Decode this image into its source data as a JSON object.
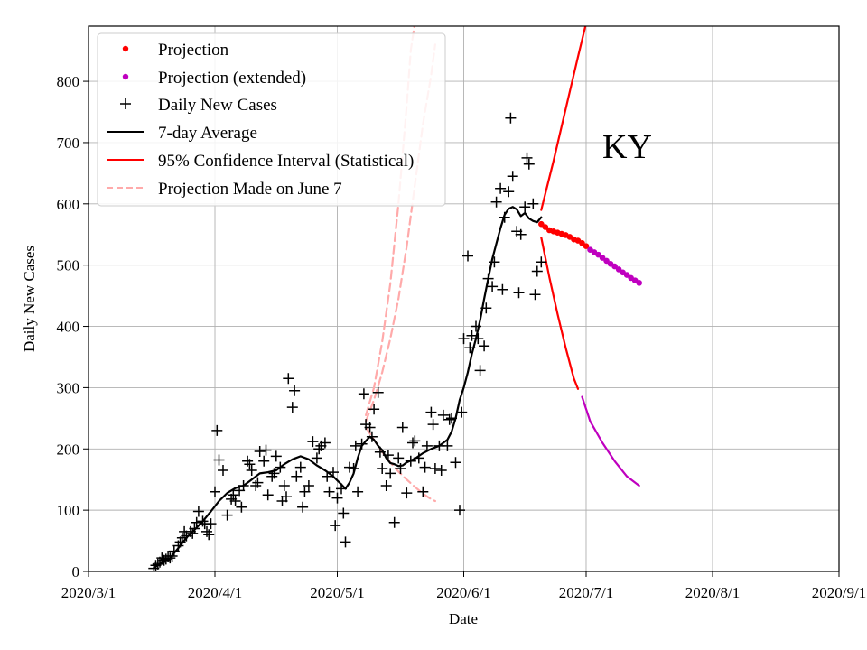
{
  "chart_data": {
    "type": "scatter",
    "title": "",
    "annotation": "KY",
    "xlabel": "Date",
    "ylabel": "Daily New Cases",
    "xlim": [
      0,
      184
    ],
    "ylim": [
      0,
      890
    ],
    "grid": true,
    "legend_position": "top-left",
    "xticks": [
      {
        "label": "2020/3/1",
        "day": 0
      },
      {
        "label": "2020/4/1",
        "day": 31
      },
      {
        "label": "2020/5/1",
        "day": 61
      },
      {
        "label": "2020/6/1",
        "day": 92
      },
      {
        "label": "2020/7/1",
        "day": 122
      },
      {
        "label": "2020/8/1",
        "day": 153
      },
      {
        "label": "2020/9/1",
        "day": 184
      }
    ],
    "yticks": [
      0,
      100,
      200,
      300,
      400,
      500,
      600,
      700,
      800
    ],
    "legend": [
      {
        "key": "projection",
        "label": "Projection",
        "color": "#ff0000",
        "kind": "dot"
      },
      {
        "key": "projection_ext",
        "label": "Projection (extended)",
        "color": "#bf00bf",
        "kind": "dot"
      },
      {
        "key": "daily",
        "label": "Daily New Cases",
        "color": "#000000",
        "kind": "plus"
      },
      {
        "key": "avg",
        "label": "7-day Average",
        "color": "#000000",
        "kind": "line"
      },
      {
        "key": "ci",
        "label": "95% Confidence Interval (Statistical)",
        "color": "#ff0000",
        "kind": "line"
      },
      {
        "key": "june7",
        "label": "Projection Made on June 7",
        "color": "#ffaaaa",
        "kind": "dashed"
      }
    ],
    "series": {
      "daily_new_cases": [
        [
          16,
          5
        ],
        [
          16.5,
          10
        ],
        [
          17,
          12
        ],
        [
          17.5,
          15
        ],
        [
          18,
          22
        ],
        [
          18.5,
          18
        ],
        [
          19,
          20
        ],
        [
          19.5,
          25
        ],
        [
          20,
          22
        ],
        [
          20.5,
          25
        ],
        [
          21,
          33
        ],
        [
          22,
          42
        ],
        [
          22.5,
          48
        ],
        [
          23,
          55
        ],
        [
          23.5,
          65
        ],
        [
          24,
          58
        ],
        [
          25,
          65
        ],
        [
          25.5,
          62
        ],
        [
          26,
          70
        ],
        [
          26.5,
          80
        ],
        [
          27,
          98
        ],
        [
          28,
          82
        ],
        [
          28.5,
          78
        ],
        [
          29,
          65
        ],
        [
          29.5,
          60
        ],
        [
          30,
          78
        ],
        [
          31,
          130
        ],
        [
          31.5,
          230
        ],
        [
          32,
          182
        ],
        [
          33,
          165
        ],
        [
          34,
          92
        ],
        [
          35,
          118
        ],
        [
          35.5,
          125
        ],
        [
          36,
          115
        ],
        [
          37,
          132
        ],
        [
          37.5,
          105
        ],
        [
          38,
          140
        ],
        [
          39,
          180
        ],
        [
          39.5,
          175
        ],
        [
          40,
          165
        ],
        [
          41,
          140
        ],
        [
          41.5,
          145
        ],
        [
          42,
          196
        ],
        [
          43,
          180
        ],
        [
          43.5,
          198
        ],
        [
          44,
          125
        ],
        [
          45,
          155
        ],
        [
          45.5,
          160
        ],
        [
          46,
          188
        ],
        [
          47,
          170
        ],
        [
          47.5,
          115
        ],
        [
          48,
          140
        ],
        [
          48.5,
          122
        ],
        [
          49,
          315
        ],
        [
          50,
          268
        ],
        [
          50.5,
          295
        ],
        [
          51,
          155
        ],
        [
          52,
          170
        ],
        [
          52.5,
          105
        ],
        [
          53,
          130
        ],
        [
          54,
          140
        ],
        [
          55,
          212
        ],
        [
          56,
          185
        ],
        [
          56.5,
          200
        ],
        [
          57,
          205
        ],
        [
          58,
          210
        ],
        [
          58.5,
          155
        ],
        [
          59,
          130
        ],
        [
          60,
          162
        ],
        [
          60.5,
          75
        ],
        [
          61,
          120
        ],
        [
          62,
          135
        ],
        [
          62.5,
          95
        ],
        [
          63,
          48
        ],
        [
          64,
          170
        ],
        [
          65,
          168
        ],
        [
          65.5,
          205
        ],
        [
          66,
          130
        ],
        [
          67,
          208
        ],
        [
          67.5,
          290
        ],
        [
          68,
          240
        ],
        [
          69,
          235
        ],
        [
          69.5,
          220
        ],
        [
          70,
          265
        ],
        [
          71,
          292
        ],
        [
          71.5,
          195
        ],
        [
          72,
          168
        ],
        [
          73,
          140
        ],
        [
          73.5,
          190
        ],
        [
          74,
          160
        ],
        [
          75,
          80
        ],
        [
          76,
          185
        ],
        [
          76.5,
          168
        ],
        [
          77,
          235
        ],
        [
          78,
          128
        ],
        [
          79,
          180
        ],
        [
          79.5,
          210
        ],
        [
          80,
          213
        ],
        [
          81,
          185
        ],
        [
          82,
          130
        ],
        [
          82.5,
          170
        ],
        [
          83,
          205
        ],
        [
          84,
          260
        ],
        [
          84.5,
          240
        ],
        [
          85,
          168
        ],
        [
          86,
          205
        ],
        [
          86.5,
          165
        ],
        [
          87,
          255
        ],
        [
          88,
          205
        ],
        [
          88.5,
          248
        ],
        [
          89,
          250
        ],
        [
          90,
          178
        ],
        [
          91,
          100
        ],
        [
          91.5,
          260
        ],
        [
          92,
          380
        ],
        [
          93,
          515
        ],
        [
          93.5,
          365
        ],
        [
          94,
          385
        ],
        [
          95,
          400
        ],
        [
          95.5,
          380
        ],
        [
          96,
          328
        ],
        [
          97,
          368
        ],
        [
          97.5,
          430
        ],
        [
          98,
          478
        ],
        [
          99,
          465
        ],
        [
          99.5,
          505
        ],
        [
          100,
          603
        ],
        [
          101,
          625
        ],
        [
          101.5,
          460
        ],
        [
          102,
          578
        ],
        [
          103,
          620
        ],
        [
          103.5,
          740
        ],
        [
          104,
          645
        ],
        [
          105,
          555
        ],
        [
          105.5,
          455
        ],
        [
          106,
          550
        ],
        [
          107,
          595
        ],
        [
          107.5,
          675
        ],
        [
          108,
          665
        ],
        [
          109,
          600
        ],
        [
          109.5,
          452
        ],
        [
          110,
          490
        ],
        [
          111,
          505
        ]
      ],
      "seven_day_average": [
        [
          16,
          6
        ],
        [
          18,
          14
        ],
        [
          20,
          22
        ],
        [
          22,
          38
        ],
        [
          24,
          55
        ],
        [
          26,
          68
        ],
        [
          28,
          82
        ],
        [
          30,
          98
        ],
        [
          32,
          115
        ],
        [
          34,
          128
        ],
        [
          36,
          136
        ],
        [
          38,
          140
        ],
        [
          40,
          150
        ],
        [
          42,
          160
        ],
        [
          44,
          162
        ],
        [
          46,
          165
        ],
        [
          48,
          175
        ],
        [
          50,
          183
        ],
        [
          52,
          188
        ],
        [
          54,
          183
        ],
        [
          56,
          173
        ],
        [
          58,
          165
        ],
        [
          60,
          155
        ],
        [
          62,
          142
        ],
        [
          63,
          135
        ],
        [
          64,
          145
        ],
        [
          65,
          160
        ],
        [
          66,
          185
        ],
        [
          67,
          205
        ],
        [
          68,
          213
        ],
        [
          69,
          220
        ],
        [
          70,
          215
        ],
        [
          71,
          205
        ],
        [
          72,
          198
        ],
        [
          73,
          185
        ],
        [
          74,
          177
        ],
        [
          75,
          175
        ],
        [
          76,
          172
        ],
        [
          77,
          173
        ],
        [
          78,
          178
        ],
        [
          80,
          184
        ],
        [
          82,
          193
        ],
        [
          84,
          200
        ],
        [
          86,
          205
        ],
        [
          88,
          215
        ],
        [
          89,
          228
        ],
        [
          90,
          250
        ],
        [
          91,
          280
        ],
        [
          92,
          300
        ],
        [
          93,
          325
        ],
        [
          94,
          355
        ],
        [
          95,
          380
        ],
        [
          96,
          410
        ],
        [
          97,
          445
        ],
        [
          98,
          478
        ],
        [
          99,
          510
        ],
        [
          100,
          535
        ],
        [
          101,
          560
        ],
        [
          102,
          582
        ],
        [
          103,
          592
        ],
        [
          104,
          595
        ],
        [
          105,
          591
        ],
        [
          106,
          580
        ],
        [
          107,
          585
        ],
        [
          108,
          576
        ],
        [
          109,
          572
        ],
        [
          110,
          570
        ],
        [
          111,
          578
        ]
      ],
      "projection": [
        [
          111,
          567
        ],
        [
          112,
          562
        ],
        [
          113,
          557
        ],
        [
          114,
          555
        ],
        [
          115,
          553
        ],
        [
          116,
          551
        ],
        [
          117,
          549
        ],
        [
          118,
          546
        ],
        [
          119,
          542
        ],
        [
          120,
          540
        ],
        [
          121,
          536
        ],
        [
          122,
          531
        ]
      ],
      "projection_extended": [
        [
          123,
          525
        ],
        [
          124,
          521
        ],
        [
          125,
          517
        ],
        [
          126,
          512
        ],
        [
          127,
          507
        ],
        [
          128,
          502
        ],
        [
          129,
          498
        ],
        [
          130,
          493
        ],
        [
          131,
          488
        ],
        [
          132,
          484
        ],
        [
          133,
          479
        ],
        [
          134,
          475
        ],
        [
          135,
          471
        ]
      ],
      "ci_upper": [
        [
          111,
          590
        ],
        [
          114,
          670
        ],
        [
          117,
          755
        ],
        [
          120,
          840
        ],
        [
          122,
          895
        ]
      ],
      "ci_lower": [
        [
          111,
          545
        ],
        [
          113,
          480
        ],
        [
          115,
          420
        ],
        [
          117,
          365
        ],
        [
          119,
          315
        ],
        [
          120,
          298
        ]
      ],
      "ci_lower_extended": [
        [
          121,
          285
        ],
        [
          123,
          245
        ],
        [
          126,
          210
        ],
        [
          129,
          180
        ],
        [
          132,
          155
        ],
        [
          135,
          140
        ]
      ],
      "june7_outer_upper": [
        [
          68,
          255
        ],
        [
          70,
          300
        ],
        [
          72,
          375
        ],
        [
          74,
          470
        ],
        [
          76,
          600
        ],
        [
          78,
          760
        ],
        [
          79,
          850
        ],
        [
          80,
          895
        ]
      ],
      "june7_inner_upper": [
        [
          68,
          245
        ],
        [
          70,
          280
        ],
        [
          72,
          325
        ],
        [
          74,
          380
        ],
        [
          76,
          445
        ],
        [
          78,
          530
        ],
        [
          80,
          630
        ],
        [
          82,
          730
        ],
        [
          84,
          810
        ],
        [
          85,
          860
        ]
      ],
      "june7_lower": [
        [
          68,
          235
        ],
        [
          70,
          215
        ],
        [
          72,
          195
        ],
        [
          74,
          178
        ],
        [
          76,
          163
        ],
        [
          78,
          150
        ],
        [
          80,
          138
        ],
        [
          82,
          127
        ],
        [
          84,
          118
        ],
        [
          85,
          115
        ]
      ]
    }
  }
}
